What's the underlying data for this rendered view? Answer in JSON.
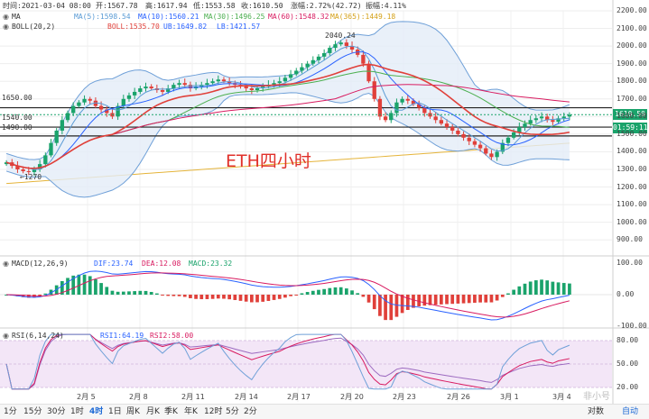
{
  "info_bar": {
    "time": "时间:2021-03-04 08:00",
    "open": "开:1567.78",
    "high": "高:1617.94",
    "low": "低:1553.58",
    "close": "收:1610.50",
    "change": "涨幅:2.72%(42.72)",
    "amplitude": "振幅:4.11%"
  },
  "ma_legend": {
    "label": "MA",
    "ma5": "MA(5):1598.54",
    "ma10": "MA(10):1560.21",
    "ma30": "MA(30):1496.25",
    "ma60": "MA(60):1548.32",
    "ma365": "MA(365):1449.18"
  },
  "boll_legend": {
    "label": "BOLL(20,2)",
    "boll": "BOLL:1535.70",
    "ub": "UB:1649.82",
    "lb": "LB:1421.57"
  },
  "annotations": {
    "high_label": "2040.24",
    "low_label": "←1270",
    "level_1650": "1650.00",
    "level_1540": "1540.00",
    "level_1490": "1490.00",
    "title": "ETH四小时"
  },
  "price_axis": [
    "2200.00",
    "2100.00",
    "2000.00",
    "1900.00",
    "1800.00",
    "1700.00",
    "1600.00",
    "1500.00",
    "1400.00",
    "1300.00",
    "1200.00",
    "1100.00",
    "1000.00",
    "900.00"
  ],
  "price_tags": {
    "current": "1610.50",
    "countdown": "01:59:11"
  },
  "macd_legend": {
    "label": "MACD(12,26,9)",
    "dif": "DIF:23.74",
    "dea": "DEA:12.08",
    "macd": "MACD:23.32"
  },
  "macd_axis": [
    "100.00",
    "0.00",
    "-100.00"
  ],
  "rsi_legend": {
    "label": "RSI(6,14,24)",
    "rsi1": "RSI1:64.19",
    "rsi2": "RSI2:58.00"
  },
  "rsi_axis": [
    "80.00",
    "50.00",
    "20.00"
  ],
  "date_axis": [
    "2月 5",
    "2月 8",
    "2月 11",
    "2月 14",
    "2月 17",
    "2月 20",
    "2月 23",
    "2月 26",
    "3月 1",
    "3月 4"
  ],
  "period_buttons": [
    "1分",
    "15分",
    "30分",
    "1时",
    "4时",
    "1日",
    "周K",
    "月K",
    "季K",
    "年K",
    "12时",
    "5分",
    "2分"
  ],
  "active_period": "4时",
  "right_buttons": [
    "对数",
    "自动"
  ],
  "watermark": "非小号",
  "colors": {
    "up": "#1aa36b",
    "down": "#e0403a",
    "accent": "#1e6ad6"
  },
  "chart_data": {
    "type": "candlestick",
    "timeframe": "4h",
    "ylim": [
      850,
      2200
    ],
    "close_sequence": [
      1340,
      1320,
      1300,
      1290,
      1285,
      1300,
      1330,
      1380,
      1450,
      1520,
      1580,
      1620,
      1660,
      1680,
      1700,
      1690,
      1660,
      1640,
      1620,
      1600,
      1660,
      1700,
      1720,
      1740,
      1760,
      1770,
      1760,
      1750,
      1740,
      1760,
      1780,
      1790,
      1780,
      1760,
      1770,
      1780,
      1790,
      1800,
      1810,
      1800,
      1790,
      1780,
      1770,
      1760,
      1750,
      1760,
      1770,
      1780,
      1790,
      1800,
      1820,
      1840,
      1860,
      1880,
      1900,
      1920,
      1940,
      1960,
      1990,
      2010,
      2020,
      2000,
      1980,
      1950,
      1900,
      1800,
      1700,
      1600,
      1580,
      1620,
      1680,
      1700,
      1690,
      1670,
      1650,
      1620,
      1600,
      1580,
      1560,
      1540,
      1520,
      1500,
      1480,
      1460,
      1440,
      1420,
      1390,
      1370,
      1400,
      1450,
      1480,
      1510,
      1540,
      1560,
      1580,
      1590,
      1600,
      1580,
      1570,
      1590,
      1600,
      1610
    ],
    "ma365_range": [
      1220,
      1449
    ],
    "macd_range": [
      -100,
      100
    ],
    "rsi_range": [
      20,
      80
    ]
  }
}
